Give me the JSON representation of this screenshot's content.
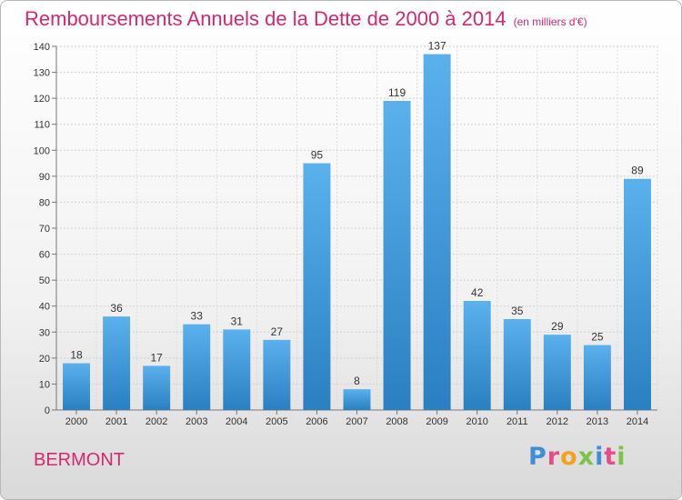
{
  "header": {
    "title": "Remboursements Annuels de la Dette de 2000 à 2014",
    "unit": "(en milliers d'€)"
  },
  "footer": {
    "commune": "BERMONT",
    "logo_letters": [
      "P",
      "r",
      "o",
      "x",
      "i",
      "t",
      "i"
    ]
  },
  "colors": {
    "title": "#d6286e",
    "bar_top": "#5bb1ec",
    "bar_bottom": "#2a7fc1",
    "logo": [
      "#3f8fd8",
      "#e84b8a",
      "#f4a21e",
      "#7cc34a",
      "#3f8fd8",
      "#e84b8a",
      "#7cc34a"
    ]
  },
  "chart_data": {
    "type": "bar",
    "categories": [
      "2000",
      "2001",
      "2002",
      "2003",
      "2004",
      "2005",
      "2006",
      "2007",
      "2008",
      "2009",
      "2010",
      "2011",
      "2012",
      "2013",
      "2014"
    ],
    "values": [
      18,
      36,
      17,
      33,
      31,
      27,
      95,
      8,
      119,
      137,
      42,
      35,
      29,
      25,
      89
    ],
    "ylim": [
      0,
      140
    ],
    "yticks": [
      0,
      10,
      20,
      30,
      40,
      50,
      60,
      70,
      80,
      90,
      100,
      110,
      120,
      130,
      140
    ],
    "grid": true,
    "data_labels": true
  }
}
